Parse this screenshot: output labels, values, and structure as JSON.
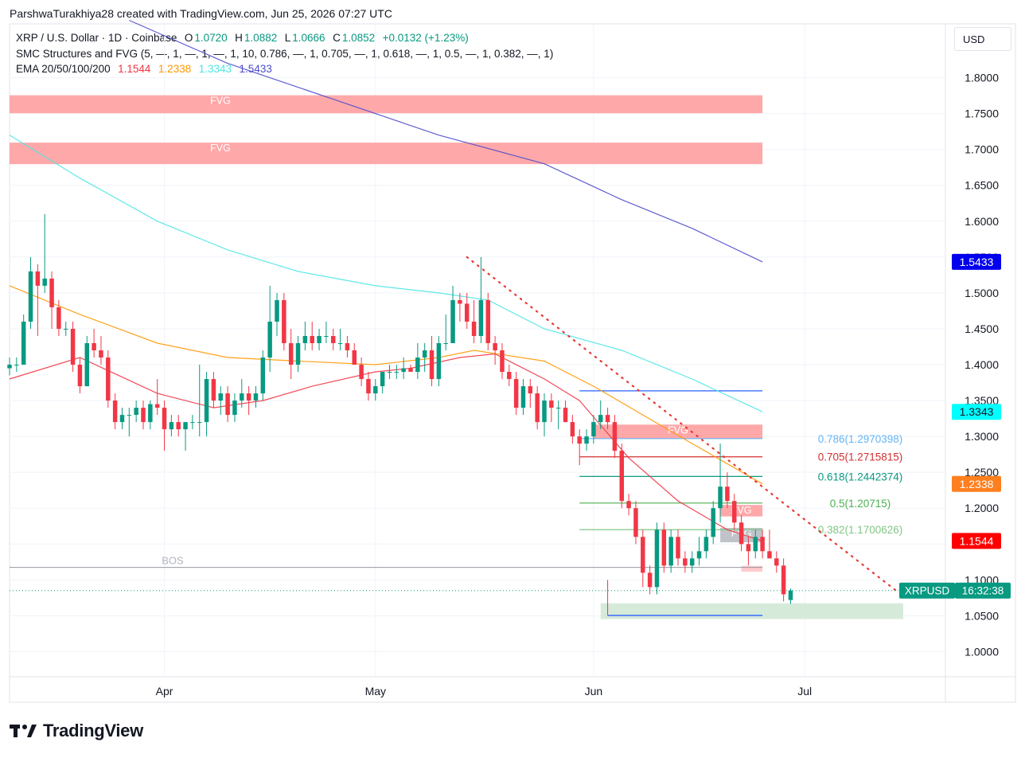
{
  "header": {
    "text": "ParshwaTurakhiya28 created with TradingView.com, Jun 25, 2026 07:27 UTC"
  },
  "legend": {
    "symbol": "XRP / U.S. Dollar · 1D · Coinbase",
    "o_label": "O",
    "o": "1.0720",
    "h_label": "H",
    "h": "1.0882",
    "l_label": "L",
    "l": "1.0666",
    "c_label": "C",
    "c": "1.0852",
    "change": "+0.0132 (+1.23%)",
    "smc": "SMC Structures and FVG (5, —, 1, —, 1, —, 1, 10, 0.786, —, 1, 0.705, —, 1, 0.618, —, 1, 0.5, —, 1, 0.382, —, 1)",
    "ema_label": "EMA 20/50/100/200",
    "ema20": "1.1544",
    "ema50": "1.2338",
    "ema100": "1.3343",
    "ema200": "1.5433"
  },
  "currency_button": "USD",
  "brand": {
    "name": "TradingView"
  },
  "colors": {
    "up": "#089981",
    "down": "#f23645",
    "ema20": "#f23645",
    "ema50": "#ff9800",
    "ema100": "#4de6e6",
    "ema200": "#4d4dcc",
    "fvg": "#ff9fa0",
    "grid": "#f0f3fa"
  },
  "chart_data": {
    "type": "candlestick",
    "y_range": [
      0.965,
      1.875
    ],
    "x_range": [
      "2026-03-10",
      "2026-07-21"
    ],
    "y_ticks": [
      "1.0000",
      "1.0500",
      "1.1000",
      "1.1500",
      "1.2000",
      "1.2500",
      "1.3000",
      "1.3500",
      "1.4000",
      "1.4500",
      "1.5000",
      "1.5500",
      "1.6000",
      "1.6500",
      "1.7000",
      "1.7500",
      "1.8000"
    ],
    "x_ticks": [
      {
        "date": "2026-04-01",
        "label": "Apr"
      },
      {
        "date": "2026-05-01",
        "label": "May"
      },
      {
        "date": "2026-06-01",
        "label": "Jun"
      },
      {
        "date": "2026-07-01",
        "label": "Jul"
      }
    ],
    "candles": {
      "start_date": "2026-03-10",
      "ohlc": [
        [
          1.395,
          1.41,
          1.385,
          1.4
        ],
        [
          1.4,
          1.41,
          1.39,
          1.4
        ],
        [
          1.4,
          1.47,
          1.4,
          1.46
        ],
        [
          1.46,
          1.55,
          1.45,
          1.53
        ],
        [
          1.53,
          1.54,
          1.44,
          1.51
        ],
        [
          1.51,
          1.61,
          1.5,
          1.52
        ],
        [
          1.52,
          1.53,
          1.45,
          1.48
        ],
        [
          1.48,
          1.49,
          1.44,
          1.45
        ],
        [
          1.45,
          1.46,
          1.44,
          1.45
        ],
        [
          1.45,
          1.46,
          1.39,
          1.4
        ],
        [
          1.4,
          1.41,
          1.36,
          1.37
        ],
        [
          1.37,
          1.44,
          1.37,
          1.43
        ],
        [
          1.43,
          1.45,
          1.41,
          1.42
        ],
        [
          1.42,
          1.44,
          1.4,
          1.41
        ],
        [
          1.41,
          1.42,
          1.34,
          1.35
        ],
        [
          1.35,
          1.36,
          1.31,
          1.32
        ],
        [
          1.32,
          1.34,
          1.31,
          1.33
        ],
        [
          1.33,
          1.34,
          1.3,
          1.33
        ],
        [
          1.33,
          1.35,
          1.32,
          1.34
        ],
        [
          1.34,
          1.35,
          1.31,
          1.32
        ],
        [
          1.32,
          1.35,
          1.31,
          1.345
        ],
        [
          1.345,
          1.38,
          1.33,
          1.34
        ],
        [
          1.34,
          1.35,
          1.28,
          1.31
        ],
        [
          1.31,
          1.33,
          1.3,
          1.32
        ],
        [
          1.32,
          1.33,
          1.3,
          1.31
        ],
        [
          1.31,
          1.32,
          1.28,
          1.32
        ],
        [
          1.32,
          1.33,
          1.31,
          1.32
        ],
        [
          1.32,
          1.4,
          1.3,
          1.32
        ],
        [
          1.32,
          1.39,
          1.3,
          1.38
        ],
        [
          1.38,
          1.39,
          1.34,
          1.35
        ],
        [
          1.35,
          1.37,
          1.33,
          1.36
        ],
        [
          1.36,
          1.37,
          1.32,
          1.33
        ],
        [
          1.33,
          1.36,
          1.32,
          1.35
        ],
        [
          1.35,
          1.38,
          1.34,
          1.36
        ],
        [
          1.36,
          1.37,
          1.33,
          1.35
        ],
        [
          1.35,
          1.37,
          1.34,
          1.36
        ],
        [
          1.36,
          1.42,
          1.35,
          1.41
        ],
        [
          1.41,
          1.51,
          1.39,
          1.46
        ],
        [
          1.46,
          1.5,
          1.44,
          1.49
        ],
        [
          1.49,
          1.5,
          1.42,
          1.43
        ],
        [
          1.43,
          1.45,
          1.38,
          1.4
        ],
        [
          1.4,
          1.44,
          1.39,
          1.43
        ],
        [
          1.43,
          1.46,
          1.42,
          1.44
        ],
        [
          1.44,
          1.46,
          1.42,
          1.43
        ],
        [
          1.43,
          1.45,
          1.42,
          1.44
        ],
        [
          1.44,
          1.46,
          1.43,
          1.44
        ],
        [
          1.44,
          1.45,
          1.42,
          1.43
        ],
        [
          1.43,
          1.45,
          1.42,
          1.43
        ],
        [
          1.43,
          1.44,
          1.41,
          1.42
        ],
        [
          1.42,
          1.43,
          1.4,
          1.4
        ],
        [
          1.4,
          1.41,
          1.37,
          1.38
        ],
        [
          1.38,
          1.39,
          1.35,
          1.36
        ],
        [
          1.36,
          1.38,
          1.35,
          1.37
        ],
        [
          1.37,
          1.39,
          1.36,
          1.39
        ],
        [
          1.39,
          1.4,
          1.38,
          1.39
        ],
        [
          1.39,
          1.4,
          1.38,
          1.39
        ],
        [
          1.39,
          1.41,
          1.38,
          1.395
        ],
        [
          1.395,
          1.4,
          1.39,
          1.39
        ],
        [
          1.39,
          1.43,
          1.38,
          1.41
        ],
        [
          1.41,
          1.43,
          1.39,
          1.42
        ],
        [
          1.42,
          1.44,
          1.37,
          1.38
        ],
        [
          1.38,
          1.44,
          1.37,
          1.43
        ],
        [
          1.43,
          1.47,
          1.42,
          1.43
        ],
        [
          1.43,
          1.51,
          1.43,
          1.49
        ],
        [
          1.49,
          1.5,
          1.46,
          1.485
        ],
        [
          1.485,
          1.5,
          1.45,
          1.46
        ],
        [
          1.46,
          1.49,
          1.43,
          1.44
        ],
        [
          1.44,
          1.55,
          1.43,
          1.49
        ],
        [
          1.49,
          1.5,
          1.42,
          1.43
        ],
        [
          1.43,
          1.44,
          1.4,
          1.42
        ],
        [
          1.42,
          1.43,
          1.38,
          1.39
        ],
        [
          1.39,
          1.4,
          1.37,
          1.38
        ],
        [
          1.38,
          1.39,
          1.33,
          1.34
        ],
        [
          1.34,
          1.38,
          1.33,
          1.37
        ],
        [
          1.37,
          1.38,
          1.34,
          1.36
        ],
        [
          1.36,
          1.37,
          1.31,
          1.32
        ],
        [
          1.32,
          1.36,
          1.3,
          1.35
        ],
        [
          1.35,
          1.36,
          1.32,
          1.34
        ],
        [
          1.34,
          1.35,
          1.31,
          1.34
        ],
        [
          1.34,
          1.35,
          1.32,
          1.32
        ],
        [
          1.32,
          1.33,
          1.29,
          1.3
        ],
        [
          1.3,
          1.31,
          1.26,
          1.29
        ],
        [
          1.29,
          1.31,
          1.28,
          1.3
        ],
        [
          1.3,
          1.33,
          1.29,
          1.32
        ],
        [
          1.32,
          1.35,
          1.31,
          1.33
        ],
        [
          1.33,
          1.34,
          1.31,
          1.32
        ],
        [
          1.32,
          1.33,
          1.27,
          1.28
        ],
        [
          1.28,
          1.29,
          1.2,
          1.21
        ],
        [
          1.21,
          1.22,
          1.19,
          1.2
        ],
        [
          1.2,
          1.21,
          1.15,
          1.16
        ],
        [
          1.16,
          1.17,
          1.09,
          1.11
        ],
        [
          1.11,
          1.12,
          1.08,
          1.09
        ],
        [
          1.09,
          1.18,
          1.08,
          1.17
        ],
        [
          1.17,
          1.18,
          1.11,
          1.12
        ],
        [
          1.12,
          1.17,
          1.11,
          1.16
        ],
        [
          1.16,
          1.17,
          1.12,
          1.13
        ],
        [
          1.13,
          1.14,
          1.11,
          1.12
        ],
        [
          1.12,
          1.14,
          1.11,
          1.13
        ],
        [
          1.13,
          1.16,
          1.12,
          1.14
        ],
        [
          1.14,
          1.17,
          1.13,
          1.16
        ],
        [
          1.16,
          1.21,
          1.15,
          1.2
        ],
        [
          1.2,
          1.29,
          1.18,
          1.23
        ],
        [
          1.23,
          1.25,
          1.2,
          1.21
        ],
        [
          1.21,
          1.22,
          1.17,
          1.18
        ],
        [
          1.18,
          1.19,
          1.14,
          1.15
        ],
        [
          1.15,
          1.16,
          1.12,
          1.14
        ],
        [
          1.14,
          1.17,
          1.13,
          1.16
        ],
        [
          1.16,
          1.17,
          1.13,
          1.14
        ],
        [
          1.14,
          1.17,
          1.13,
          1.13
        ],
        [
          1.13,
          1.14,
          1.11,
          1.12
        ],
        [
          1.12,
          1.13,
          1.07,
          1.08
        ],
        [
          1.072,
          1.0882,
          1.0666,
          1.0852
        ]
      ]
    },
    "emas": [
      {
        "name": "EMA 20",
        "color": "#f23645",
        "points": [
          [
            "2026-03-10",
            1.38
          ],
          [
            "2026-03-20",
            1.41
          ],
          [
            "2026-03-31",
            1.36
          ],
          [
            "2026-04-08",
            1.34
          ],
          [
            "2026-04-15",
            1.35
          ],
          [
            "2026-04-22",
            1.37
          ],
          [
            "2026-05-01",
            1.39
          ],
          [
            "2026-05-06",
            1.395
          ],
          [
            "2026-05-13",
            1.41
          ],
          [
            "2026-05-18",
            1.415
          ],
          [
            "2026-05-25",
            1.38
          ],
          [
            "2026-05-30",
            1.35
          ],
          [
            "2026-06-06",
            1.27
          ],
          [
            "2026-06-13",
            1.21
          ],
          [
            "2026-06-20",
            1.17
          ],
          [
            "2026-06-25",
            1.1544
          ]
        ]
      },
      {
        "name": "EMA 50",
        "color": "#ff9800",
        "points": [
          [
            "2026-03-10",
            1.51
          ],
          [
            "2026-03-20",
            1.47
          ],
          [
            "2026-03-31",
            1.43
          ],
          [
            "2026-04-10",
            1.41
          ],
          [
            "2026-04-20",
            1.405
          ],
          [
            "2026-05-01",
            1.4
          ],
          [
            "2026-05-10",
            1.41
          ],
          [
            "2026-05-15",
            1.42
          ],
          [
            "2026-05-25",
            1.405
          ],
          [
            "2026-06-01",
            1.37
          ],
          [
            "2026-06-08",
            1.33
          ],
          [
            "2026-06-15",
            1.29
          ],
          [
            "2026-06-25",
            1.2338
          ]
        ]
      },
      {
        "name": "EMA 100",
        "color": "#4de6e6",
        "points": [
          [
            "2026-03-10",
            1.72
          ],
          [
            "2026-03-20",
            1.66
          ],
          [
            "2026-03-31",
            1.6
          ],
          [
            "2026-04-10",
            1.56
          ],
          [
            "2026-04-20",
            1.53
          ],
          [
            "2026-05-01",
            1.51
          ],
          [
            "2026-05-10",
            1.5
          ],
          [
            "2026-05-17",
            1.49
          ],
          [
            "2026-05-25",
            1.45
          ],
          [
            "2026-06-05",
            1.42
          ],
          [
            "2026-06-15",
            1.38
          ],
          [
            "2026-06-25",
            1.3343
          ]
        ]
      },
      {
        "name": "EMA 200",
        "color": "#4d4dcc",
        "points": [
          [
            "2026-03-27",
            1.88
          ],
          [
            "2026-04-10",
            1.82
          ],
          [
            "2026-04-25",
            1.77
          ],
          [
            "2026-05-10",
            1.72
          ],
          [
            "2026-05-25",
            1.68
          ],
          [
            "2026-06-05",
            1.63
          ],
          [
            "2026-06-15",
            1.59
          ],
          [
            "2026-06-25",
            1.5433
          ]
        ]
      }
    ],
    "fvg_zones": [
      {
        "label": "FVG",
        "x0": "2026-03-10",
        "x1": "2026-06-25",
        "y0": 1.7505,
        "y1": 1.7755,
        "color": "#ff9fa0"
      },
      {
        "label": "FVG",
        "x0": "2026-03-10",
        "x1": "2026-06-25",
        "y0": 1.6795,
        "y1": 1.7095,
        "color": "#ff9fa0"
      },
      {
        "label": "FVG",
        "x0": "2026-06-01",
        "x1": "2026-06-25",
        "y0": 1.2965,
        "y1": 1.3165,
        "color": "#ff9fa0"
      },
      {
        "label": "FVG",
        "x0": "2026-06-19",
        "x1": "2026-06-25",
        "y0": 1.1885,
        "y1": 1.2045,
        "color": "#ff9fa0"
      },
      {
        "label": "FVG",
        "x0": "2026-06-19",
        "x1": "2026-06-25",
        "y0": 1.1525,
        "y1": 1.1725,
        "color": "#b9bcc4"
      },
      {
        "label": "",
        "x0": "2026-06-22",
        "x1": "2026-06-25",
        "y0": 1.1115,
        "y1": 1.1195,
        "color": "#ffc5c6"
      }
    ],
    "demand_zone": {
      "x0": "2026-06-02",
      "x1": "2026-07-15",
      "y0": 1.0455,
      "y1": 1.0675,
      "color": "#cfe6d3"
    },
    "fib_levels": [
      {
        "label": "0.786(1.2970398)",
        "value": 1.2970398,
        "color": "#64b5f6"
      },
      {
        "label": "0.705(1.2715815)",
        "value": 1.2715815,
        "color": "#d32f2f"
      },
      {
        "label": "0.618(1.2442374)",
        "value": 1.2442374,
        "color": "#089981"
      },
      {
        "label": "0.5(1.20715)",
        "value": 1.20715,
        "color": "#4caf50"
      },
      {
        "label": "0.382(1.1700626)",
        "value": 1.1700626,
        "color": "#81c784"
      }
    ],
    "fib_x_range": [
      "2026-05-30",
      "2026-06-25"
    ],
    "structure_lines": [
      {
        "x0": "2026-05-30",
        "x1": "2026-06-25",
        "y": 1.3635,
        "color": "#2962ff"
      },
      {
        "x0": "2026-06-03",
        "x1": "2026-06-25",
        "y": 1.0505,
        "color": "#2962ff"
      }
    ],
    "bos": {
      "label": "BOS",
      "x0": "2026-03-10",
      "x1": "2026-06-25",
      "y": 1.1175
    },
    "trendline": {
      "x0": "2026-05-14",
      "y0": 1.55,
      "x1": "2026-07-14",
      "y1": 1.085
    },
    "current_price": 1.0852,
    "price_badges": [
      {
        "text": "1.5433",
        "value": 1.5433,
        "bg": "#0000ee",
        "fg": "#ffffff"
      },
      {
        "text": "1.3343",
        "value": 1.3343,
        "bg": "#00ffff",
        "fg": "#131722"
      },
      {
        "text": "1.2338",
        "value": 1.2338,
        "bg": "#ff7f1e",
        "fg": "#ffffff"
      },
      {
        "text": "1.1544",
        "value": 1.1544,
        "bg": "#ff0000",
        "fg": "#ffffff"
      }
    ],
    "last_price_tag": {
      "symbol": "XRPUSD",
      "countdown": "16:32:38"
    }
  }
}
